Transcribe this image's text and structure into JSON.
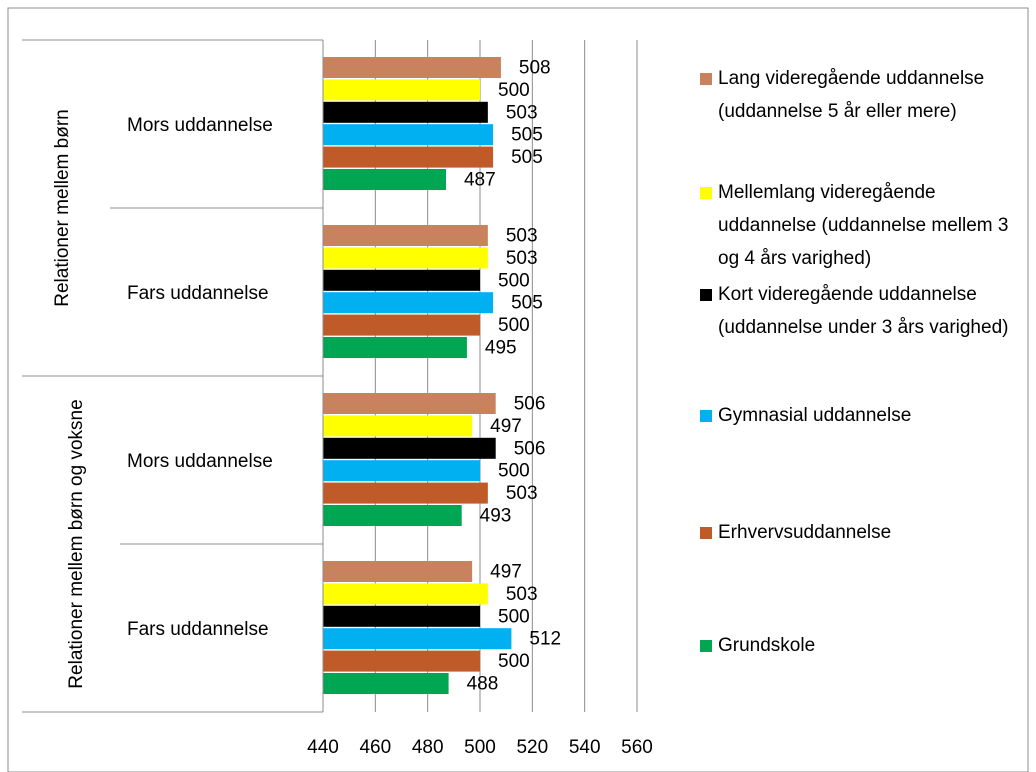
{
  "chart_data": {
    "type": "hbar",
    "category_groups": [
      "Relationer mellem børn",
      "Relationer mellem børn og voksne"
    ],
    "categories": [
      "Mors uddannelse",
      "Fars uddannelse",
      "Mors uddannelse",
      "Fars uddannelse"
    ],
    "series": [
      {
        "name": "Lang videregående uddannelse (uddannelse 5 år eller mere)",
        "color": "#c9825e",
        "values": [
          508,
          503,
          506,
          497
        ]
      },
      {
        "name": "Mellemlang videregående uddannelse (uddannelse mellem 3 og 4 års varighed)",
        "color": "#ffff00",
        "values": [
          500,
          503,
          497,
          503
        ]
      },
      {
        "name": "Kort videregående uddannelse (uddannelse under 3 års varighed)",
        "color": "#000000",
        "values": [
          503,
          500,
          506,
          500
        ]
      },
      {
        "name": "Gymnasial uddannelse",
        "color": "#00b0f0",
        "values": [
          505,
          505,
          500,
          512
        ]
      },
      {
        "name": "Erhvervsuddannelse",
        "color": "#c05a28",
        "values": [
          505,
          500,
          503,
          500
        ]
      },
      {
        "name": "Grundskole",
        "color": "#00a651",
        "values": [
          487,
          495,
          493,
          488
        ]
      }
    ],
    "xlim": [
      440,
      560
    ],
    "xticks": [
      440,
      460,
      480,
      500,
      520,
      540,
      560
    ],
    "grid": true
  }
}
